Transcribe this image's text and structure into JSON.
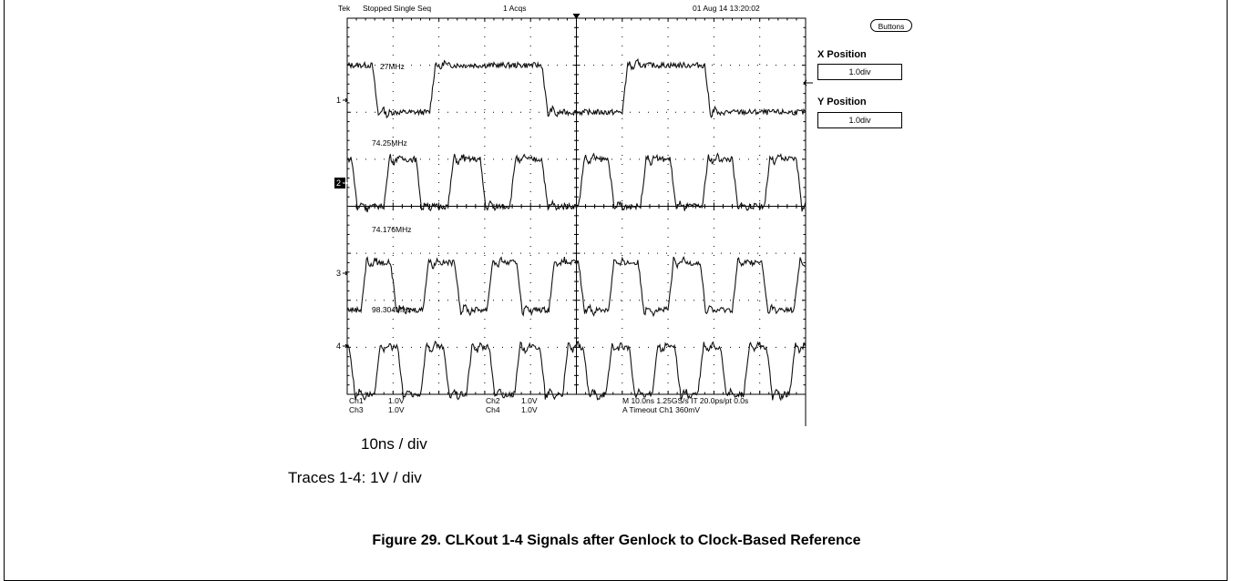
{
  "scope": {
    "brand": "Tek",
    "status": "Stopped  Single Seq",
    "acqs": "1 Acqs",
    "datetime": "01 Aug 14 13:20:02",
    "readout": {
      "ch1": "Ch1",
      "ch1_scale": "1.0V",
      "ch3": "Ch3",
      "ch3_scale": "1.0V",
      "ch2": "Ch2",
      "ch2_scale": "1.0V",
      "ch4": "Ch4",
      "ch4_scale": "1.0V",
      "timebase": "M 10.0ns 1.25GS/s   IT 20.0ps/pt 0.0s",
      "trigger": "A  Timeout  Ch1        360mV"
    },
    "channel_markers": [
      "1",
      "2",
      "3",
      "4"
    ],
    "active_channel": "2"
  },
  "side_menu": {
    "button_label": "Buttons",
    "x_position_label": "X Position",
    "x_position_value": "1.0div",
    "y_position_label": "Y Position",
    "y_position_value": "1.0div"
  },
  "annotations": {
    "time_scale": "10ns / div",
    "volt_scale": "Traces 1-4: 1V / div"
  },
  "caption": "Figure 29. CLKout 1-4 Signals after Genlock to Clock-Based Reference",
  "chart_data": {
    "type": "line",
    "title": "",
    "xlabel": "",
    "ylabel": "",
    "x_unit": "ns",
    "y_unit": "V",
    "xlim": [
      -50,
      50
    ],
    "ylim": [
      -4,
      4
    ],
    "grid": true,
    "series": [
      {
        "name": "27MHz",
        "channel": 1,
        "freq_mhz": 27,
        "amplitude_v": 1.0,
        "edges_ns": [
          -44.5,
          -32.0,
          -7.5,
          10.0,
          28.0
        ],
        "start_high": true
      },
      {
        "name": "74.25MHz",
        "channel": 2,
        "freq_mhz": 74.25,
        "amplitude_v": 1.0,
        "edges_ns": [
          -49.0,
          -42.0,
          -35.0,
          -28.0,
          -21.0,
          -14.5,
          -7.5,
          0.5,
          7.0,
          14.0,
          20.5,
          27.5,
          34.0,
          41.0,
          48.0
        ],
        "start_high": true
      },
      {
        "name": "74.176MHz",
        "channel": 3,
        "freq_mhz": 74.176,
        "amplitude_v": 1.0,
        "edges_ns": [
          -47.0,
          -40.5,
          -33.5,
          -26.5,
          -19.5,
          -13.0,
          -6.0,
          0.5,
          7.0,
          13.5,
          20.0,
          27.0,
          34.0,
          40.5,
          47.5
        ],
        "start_high": false
      },
      {
        "name": "98.304MHz",
        "channel": 4,
        "freq_mhz": 98.304,
        "amplitude_v": 1.0,
        "edges_ns": [
          -49.5,
          -44.0,
          -39.0,
          -34.0,
          -29.0,
          -24.0,
          -19.0,
          -13.5,
          -8.0,
          -3.0,
          1.5,
          6.5,
          11.5,
          16.5,
          21.5,
          26.5,
          31.5,
          36.5,
          41.5,
          46.5
        ],
        "start_high": true
      }
    ]
  }
}
